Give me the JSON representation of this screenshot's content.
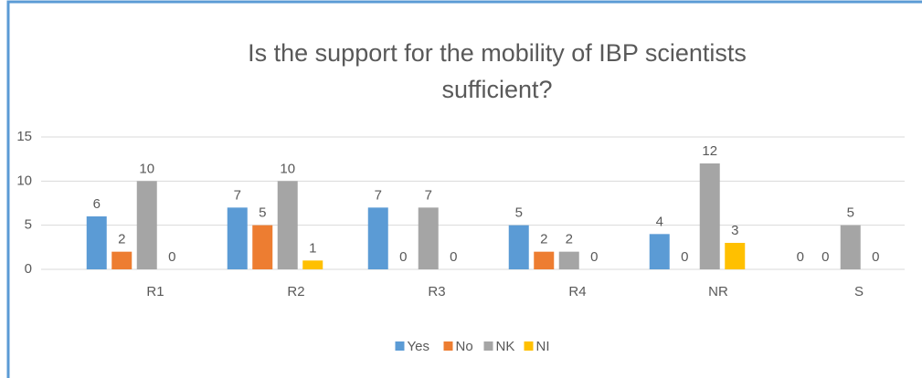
{
  "chart_data": {
    "type": "bar",
    "title": "Is the support for the mobility of IBP scientists sufficient?",
    "categories": [
      "R1",
      "R2",
      "R3",
      "R4",
      "NR",
      "S"
    ],
    "series": [
      {
        "name": "Yes",
        "color": "#5b9bd5",
        "values": [
          6,
          7,
          7,
          5,
          4,
          0
        ]
      },
      {
        "name": "No",
        "color": "#ed7d31",
        "values": [
          2,
          5,
          0,
          2,
          0,
          0
        ]
      },
      {
        "name": "NK",
        "color": "#a5a5a5",
        "values": [
          10,
          10,
          7,
          2,
          12,
          5
        ]
      },
      {
        "name": "NI",
        "color": "#ffc000",
        "values": [
          0,
          1,
          0,
          0,
          3,
          0
        ]
      }
    ],
    "ylim": [
      0,
      15
    ],
    "yticks": [
      0,
      5,
      10,
      15
    ],
    "grid": true,
    "legend": "bottom"
  }
}
